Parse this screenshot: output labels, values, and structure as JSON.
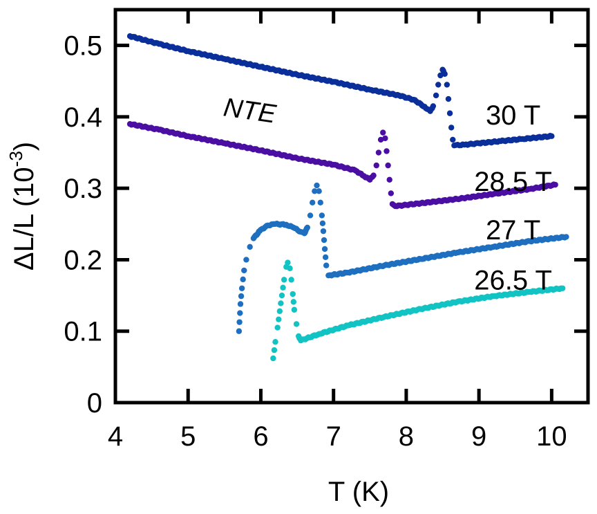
{
  "chart_data": {
    "type": "scatter",
    "title": "",
    "xlabel": "T (K)",
    "ylabel": "ΔL/L (10",
    "ylabel_exponent": "-3",
    "ylabel_close": ")",
    "xlim": [
      4,
      10.5
    ],
    "ylim": [
      0,
      0.55
    ],
    "xticks": [
      4,
      5,
      6,
      7,
      8,
      9,
      10
    ],
    "xtick_labels": [
      "4",
      "5",
      "6",
      "7",
      "8",
      "9",
      "10"
    ],
    "yticks": [
      0,
      0.1,
      0.2,
      0.3,
      0.4,
      0.5
    ],
    "ytick_labels": [
      "0",
      "0.1",
      "0.2",
      "0.3",
      "0.4",
      "0.5"
    ],
    "grid": false,
    "annotations": [
      {
        "text": "NTE",
        "x": 5.85,
        "y": 0.41
      }
    ],
    "series": [
      {
        "name": "30 T",
        "color": "#0a2f9a",
        "points": [
          [
            4.2,
            0.513
          ],
          [
            4.6,
            0.502
          ],
          [
            5.0,
            0.492
          ],
          [
            5.5,
            0.481
          ],
          [
            6.0,
            0.47
          ],
          [
            6.5,
            0.459
          ],
          [
            7.0,
            0.449
          ],
          [
            7.5,
            0.438
          ],
          [
            7.9,
            0.43
          ],
          [
            8.1,
            0.424
          ],
          [
            8.2,
            0.418
          ],
          [
            8.27,
            0.412
          ],
          [
            8.33,
            0.408
          ],
          [
            8.37,
            0.415
          ],
          [
            8.41,
            0.43
          ],
          [
            8.44,
            0.445
          ],
          [
            8.47,
            0.458
          ],
          [
            8.5,
            0.466
          ],
          [
            8.53,
            0.46
          ],
          [
            8.56,
            0.445
          ],
          [
            8.58,
            0.425
          ],
          [
            8.6,
            0.405
          ],
          [
            8.62,
            0.385
          ],
          [
            8.64,
            0.368
          ],
          [
            8.66,
            0.36
          ],
          [
            8.8,
            0.361
          ],
          [
            9.0,
            0.363
          ],
          [
            9.3,
            0.366
          ],
          [
            9.6,
            0.369
          ],
          [
            10.0,
            0.373
          ]
        ]
      },
      {
        "name": "28.5 T",
        "color": "#4b0ea3",
        "points": [
          [
            4.2,
            0.39
          ],
          [
            4.6,
            0.382
          ],
          [
            5.0,
            0.373
          ],
          [
            5.5,
            0.363
          ],
          [
            6.0,
            0.353
          ],
          [
            6.5,
            0.342
          ],
          [
            7.0,
            0.333
          ],
          [
            7.3,
            0.325
          ],
          [
            7.42,
            0.317
          ],
          [
            7.5,
            0.312
          ],
          [
            7.55,
            0.318
          ],
          [
            7.59,
            0.332
          ],
          [
            7.62,
            0.35
          ],
          [
            7.65,
            0.368
          ],
          [
            7.68,
            0.378
          ],
          [
            7.71,
            0.37
          ],
          [
            7.73,
            0.352
          ],
          [
            7.75,
            0.332
          ],
          [
            7.77,
            0.312
          ],
          [
            7.79,
            0.293
          ],
          [
            7.81,
            0.278
          ],
          [
            7.85,
            0.275
          ],
          [
            8.2,
            0.279
          ],
          [
            8.7,
            0.285
          ],
          [
            9.2,
            0.292
          ],
          [
            9.7,
            0.299
          ],
          [
            10.05,
            0.305
          ]
        ]
      },
      {
        "name": "27 T",
        "color": "#1f6fc0",
        "points": [
          [
            5.7,
            0.1
          ],
          [
            5.72,
            0.138
          ],
          [
            5.74,
            0.16
          ],
          [
            5.77,
            0.185
          ],
          [
            5.8,
            0.2
          ],
          [
            5.85,
            0.218
          ],
          [
            5.9,
            0.23
          ],
          [
            6.0,
            0.242
          ],
          [
            6.1,
            0.248
          ],
          [
            6.2,
            0.25
          ],
          [
            6.35,
            0.249
          ],
          [
            6.45,
            0.245
          ],
          [
            6.55,
            0.239
          ],
          [
            6.6,
            0.237
          ],
          [
            6.64,
            0.245
          ],
          [
            6.68,
            0.262
          ],
          [
            6.71,
            0.28
          ],
          [
            6.74,
            0.296
          ],
          [
            6.77,
            0.304
          ],
          [
            6.8,
            0.296
          ],
          [
            6.82,
            0.28
          ],
          [
            6.84,
            0.262
          ],
          [
            6.86,
            0.24
          ],
          [
            6.88,
            0.215
          ],
          [
            6.9,
            0.192
          ],
          [
            6.93,
            0.178
          ],
          [
            7.2,
            0.182
          ],
          [
            7.7,
            0.192
          ],
          [
            8.2,
            0.201
          ],
          [
            8.7,
            0.21
          ],
          [
            9.2,
            0.218
          ],
          [
            9.7,
            0.226
          ],
          [
            10.2,
            0.232
          ]
        ]
      },
      {
        "name": "26.5 T",
        "color": "#12c3c3",
        "points": [
          [
            6.17,
            0.062
          ],
          [
            6.2,
            0.085
          ],
          [
            6.23,
            0.105
          ],
          [
            6.26,
            0.128
          ],
          [
            6.29,
            0.15
          ],
          [
            6.32,
            0.172
          ],
          [
            6.35,
            0.19
          ],
          [
            6.37,
            0.196
          ],
          [
            6.4,
            0.188
          ],
          [
            6.42,
            0.172
          ],
          [
            6.44,
            0.152
          ],
          [
            6.46,
            0.13
          ],
          [
            6.49,
            0.11
          ],
          [
            6.52,
            0.093
          ],
          [
            6.55,
            0.087
          ],
          [
            6.8,
            0.096
          ],
          [
            7.2,
            0.108
          ],
          [
            7.7,
            0.12
          ],
          [
            8.2,
            0.131
          ],
          [
            8.7,
            0.141
          ],
          [
            9.2,
            0.149
          ],
          [
            9.7,
            0.155
          ],
          [
            10.15,
            0.16
          ]
        ]
      }
    ],
    "series_labels": [
      {
        "text": "30 T",
        "x": 9.47,
        "y": 0.403
      },
      {
        "text": "28.5 T",
        "x": 9.47,
        "y": 0.31
      },
      {
        "text": "27 T",
        "x": 9.47,
        "y": 0.242
      },
      {
        "text": "26.5 T",
        "x": 9.47,
        "y": 0.172
      }
    ]
  }
}
